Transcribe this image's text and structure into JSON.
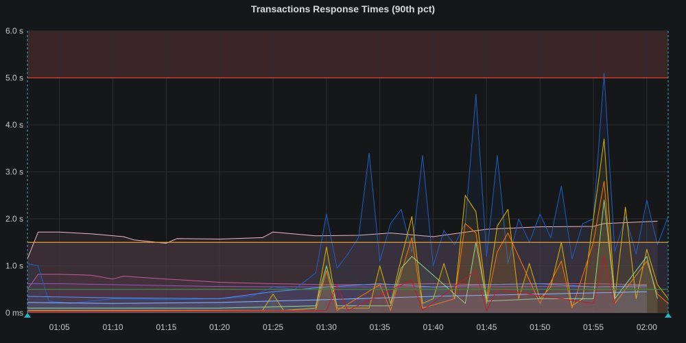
{
  "panel": {
    "title": "Transactions Response Times (90th pct)"
  },
  "colors": {
    "background": "#161719",
    "grid": "#2c2d31",
    "time_region": "#1fb6c9",
    "critical_zone": "#3a2527",
    "critical_line": "#e0442e",
    "warning_zone": "#2b2226",
    "warning_line": "#e5a13c",
    "ok_line": "#3f8a3f"
  },
  "chart_data": {
    "type": "line",
    "title": "Transactions Response Times (90th pct)",
    "xlabel": "",
    "ylabel": "",
    "xlim": [
      "01:02",
      "02:02"
    ],
    "ylim": [
      0,
      6
    ],
    "grid": true,
    "legend": "none",
    "x_ticks": [
      "01:05",
      "01:10",
      "01:15",
      "01:20",
      "01:25",
      "01:30",
      "01:35",
      "01:40",
      "01:45",
      "01:50",
      "01:55",
      "02:00"
    ],
    "y_ticks": [
      {
        "value": 0,
        "label": "0 ms"
      },
      {
        "value": 1,
        "label": "1.0 s"
      },
      {
        "value": 2,
        "label": "2.0 s"
      },
      {
        "value": 3,
        "label": "3.0 s"
      },
      {
        "value": 4,
        "label": "4.0 s"
      },
      {
        "value": 5,
        "label": "5.0 s"
      },
      {
        "value": 6,
        "label": "6.0 s"
      }
    ],
    "thresholds": [
      {
        "value": 5.0,
        "color": "#e0442e",
        "fill_above": true
      },
      {
        "value": 1.5,
        "color": "#e5a13c",
        "fill_above": true
      },
      {
        "value": 0.5,
        "color": "#3f8a3f",
        "fill_above": false
      }
    ],
    "series": [
      {
        "color": "#f2b8c6",
        "x": [
          "01:02",
          "01:03",
          "01:05",
          "01:08",
          "01:11",
          "01:12",
          "01:15",
          "01:16",
          "01:20",
          "01:24",
          "01:25",
          "01:29",
          "01:33",
          "01:36",
          "01:40",
          "01:45",
          "01:50",
          "01:55",
          "01:56",
          "02:00",
          "02:01"
        ],
        "values": [
          1.15,
          1.72,
          1.72,
          1.68,
          1.62,
          1.55,
          1.48,
          1.58,
          1.57,
          1.6,
          1.72,
          1.64,
          1.65,
          1.7,
          1.62,
          1.78,
          1.83,
          1.84,
          1.9,
          1.94,
          1.95
        ]
      },
      {
        "color": "#c15c9e",
        "x": [
          "01:02",
          "01:03",
          "01:05",
          "01:08",
          "01:10",
          "01:11",
          "01:15",
          "01:20",
          "01:25",
          "01:30",
          "01:35",
          "01:40",
          "01:45",
          "01:50",
          "01:55",
          "02:00"
        ],
        "values": [
          0.5,
          0.82,
          0.82,
          0.8,
          0.72,
          0.78,
          0.72,
          0.65,
          0.62,
          0.6,
          0.6,
          0.62,
          0.6,
          0.62,
          0.62,
          0.6
        ]
      },
      {
        "color": "#8e5ab8",
        "x": [
          "01:02",
          "01:05",
          "01:10",
          "01:20",
          "01:30",
          "01:40",
          "01:50",
          "02:00"
        ],
        "values": [
          0.62,
          0.62,
          0.6,
          0.56,
          0.55,
          0.55,
          0.56,
          0.55
        ]
      },
      {
        "color": "#1f60c4",
        "x": [
          "01:02",
          "01:03",
          "01:04",
          "01:06",
          "01:10",
          "01:15",
          "01:20",
          "01:23",
          "01:25",
          "01:27",
          "01:29",
          "01:30",
          "01:31",
          "01:32",
          "01:33",
          "01:34",
          "01:35",
          "01:36",
          "01:37",
          "01:38",
          "01:39",
          "01:40",
          "01:41",
          "01:42",
          "01:43",
          "01:44",
          "01:45",
          "01:46",
          "01:47",
          "01:48",
          "01:49",
          "01:50",
          "01:51",
          "01:52",
          "01:53",
          "01:54",
          "01:55",
          "01:56",
          "01:57",
          "01:58",
          "01:59",
          "02:00",
          "02:01",
          "02:02"
        ],
        "values": [
          1.05,
          1.0,
          0.25,
          0.2,
          0.3,
          0.28,
          0.3,
          0.35,
          0.55,
          0.5,
          0.85,
          2.1,
          0.95,
          1.25,
          1.6,
          3.4,
          1.1,
          1.9,
          2.2,
          1.3,
          3.35,
          1.0,
          1.75,
          1.45,
          1.9,
          4.65,
          1.2,
          3.35,
          1.05,
          2.0,
          1.5,
          2.1,
          1.6,
          2.7,
          1.15,
          1.9,
          2.0,
          5.1,
          1.3,
          2.05,
          1.25,
          2.4,
          1.45,
          2.05
        ]
      },
      {
        "color": "#5794f2",
        "x": [
          "01:02",
          "01:10",
          "01:20",
          "01:25",
          "01:30",
          "01:35",
          "01:40",
          "01:45",
          "01:50",
          "01:55",
          "02:00"
        ],
        "values": [
          0.35,
          0.32,
          0.3,
          0.45,
          0.55,
          0.62,
          0.55,
          0.6,
          0.62,
          0.55,
          0.58
        ]
      },
      {
        "color": "#e0b400",
        "x": [
          "01:02",
          "01:24",
          "01:25",
          "01:26",
          "01:29",
          "01:30",
          "01:31",
          "01:34",
          "01:35",
          "01:36",
          "01:37",
          "01:38",
          "01:39",
          "01:40",
          "01:41",
          "01:42",
          "01:43",
          "01:44",
          "01:45",
          "01:46",
          "01:47",
          "01:48",
          "01:49",
          "01:50",
          "01:51",
          "01:52",
          "01:53",
          "01:54",
          "01:55",
          "01:56",
          "01:57",
          "01:58",
          "01:59",
          "02:00",
          "02:01",
          "02:02"
        ],
        "values": [
          0.05,
          0.05,
          0.4,
          0.05,
          0.1,
          1.4,
          0.1,
          0.1,
          1.0,
          0.2,
          1.15,
          2.05,
          0.2,
          0.3,
          1.05,
          0.3,
          2.5,
          2.15,
          0.3,
          1.85,
          2.2,
          0.3,
          1.05,
          0.3,
          0.55,
          1.5,
          0.15,
          0.3,
          2.0,
          3.7,
          0.3,
          2.25,
          0.3,
          1.35,
          0.6,
          0.3
        ]
      },
      {
        "color": "#ff780a",
        "x": [
          "01:02",
          "01:29",
          "01:30",
          "01:31",
          "01:35",
          "01:36",
          "01:37",
          "01:38",
          "01:39",
          "01:42",
          "01:43",
          "01:44",
          "01:45",
          "01:46",
          "01:47",
          "01:50",
          "01:52",
          "01:53",
          "01:55",
          "01:56",
          "01:57",
          "02:00",
          "02:01",
          "02:02"
        ],
        "values": [
          0.05,
          0.05,
          0.9,
          0.05,
          0.6,
          0.05,
          0.85,
          1.6,
          0.1,
          0.3,
          1.9,
          1.7,
          0.2,
          1.3,
          1.7,
          0.2,
          1.1,
          0.1,
          1.5,
          2.8,
          0.2,
          1.1,
          0.4,
          0.2
        ]
      },
      {
        "color": "#96d98d",
        "x": [
          "01:02",
          "01:20",
          "01:29",
          "01:30",
          "01:31",
          "01:36",
          "01:37",
          "01:38",
          "01:43",
          "01:44",
          "01:45",
          "01:50",
          "01:55",
          "01:56",
          "01:57",
          "02:00",
          "02:01"
        ],
        "values": [
          0.1,
          0.1,
          0.15,
          1.0,
          0.15,
          0.15,
          0.95,
          1.2,
          0.2,
          1.5,
          0.25,
          0.3,
          0.3,
          2.4,
          0.3,
          1.2,
          0.3
        ]
      },
      {
        "color": "#8ab8ff",
        "x": [
          "01:02",
          "01:10",
          "01:20",
          "01:30",
          "01:40",
          "01:50",
          "02:00"
        ],
        "values": [
          0.22,
          0.2,
          0.22,
          0.28,
          0.35,
          0.4,
          0.45
        ]
      },
      {
        "color": "#c4162a",
        "x": [
          "01:02",
          "01:30",
          "01:31",
          "01:32",
          "01:38",
          "01:39",
          "01:44",
          "01:45",
          "01:46",
          "01:55",
          "01:56",
          "01:57"
        ],
        "values": [
          0.02,
          0.05,
          0.6,
          0.05,
          0.7,
          0.05,
          0.9,
          0.05,
          0.5,
          0.2,
          1.2,
          0.2
        ]
      }
    ]
  }
}
